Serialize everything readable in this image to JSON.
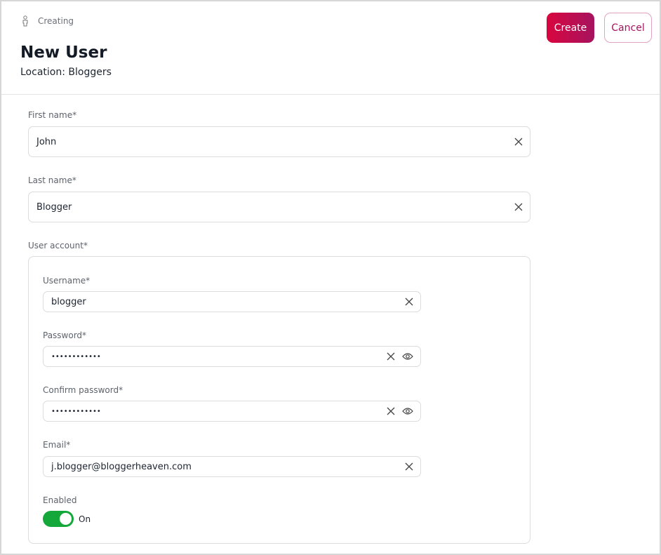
{
  "header": {
    "status": "Creating",
    "title": "New User",
    "location": "Location: Bloggers",
    "create_label": "Create",
    "cancel_label": "Cancel"
  },
  "colors": {
    "accent_start": "#d8063f",
    "accent_end": "#a6135f",
    "toggle_on": "#14a83b"
  },
  "form": {
    "first_name": {
      "label": "First name*",
      "value": "John"
    },
    "last_name": {
      "label": "Last name*",
      "value": "Blogger"
    },
    "user_account": {
      "label": "User account*",
      "username": {
        "label": "Username*",
        "value": "blogger"
      },
      "password": {
        "label": "Password*",
        "value": "••••••••••••"
      },
      "confirm_password": {
        "label": "Confirm password*",
        "value": "••••••••••••"
      },
      "email": {
        "label": "Email*",
        "value": "j.blogger@bloggerheaven.com"
      },
      "enabled": {
        "label": "Enabled",
        "state": "On"
      }
    }
  }
}
